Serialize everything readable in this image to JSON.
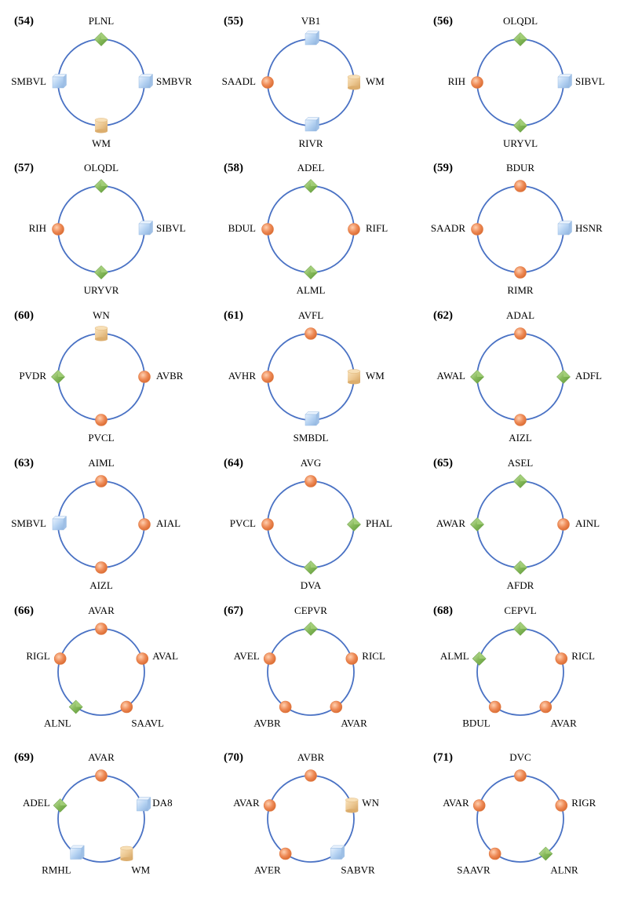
{
  "colors": {
    "ring": "#4a72c4",
    "orange": "#ee8a56",
    "green": "#86b95a",
    "blue": "#b6d3f2",
    "tan": "#ecc892",
    "text": "#000000"
  },
  "motifs": [
    {
      "label": "(54)",
      "nodes": [
        {
          "name": "PLNL",
          "shape": "diamond",
          "color": "green"
        },
        {
          "name": "SMBVR",
          "shape": "cube",
          "color": "blue"
        },
        {
          "name": "WM",
          "shape": "cylinder",
          "color": "tan"
        },
        {
          "name": "SMBVL",
          "shape": "cube",
          "color": "blue"
        }
      ]
    },
    {
      "label": "(55)",
      "nodes": [
        {
          "name": "VB1",
          "shape": "cube",
          "color": "blue"
        },
        {
          "name": "WM",
          "shape": "cylinder",
          "color": "tan"
        },
        {
          "name": "RIVR",
          "shape": "cube",
          "color": "blue"
        },
        {
          "name": "SAADL",
          "shape": "circle",
          "color": "orange"
        }
      ]
    },
    {
      "label": "(56)",
      "nodes": [
        {
          "name": "OLQDL",
          "shape": "diamond",
          "color": "green"
        },
        {
          "name": "SIBVL",
          "shape": "cube",
          "color": "blue"
        },
        {
          "name": "URYVL",
          "shape": "diamond",
          "color": "green"
        },
        {
          "name": "RIH",
          "shape": "circle",
          "color": "orange"
        }
      ]
    },
    {
      "label": "(57)",
      "nodes": [
        {
          "name": "OLQDL",
          "shape": "diamond",
          "color": "green"
        },
        {
          "name": "SIBVL",
          "shape": "cube",
          "color": "blue"
        },
        {
          "name": "URYVR",
          "shape": "diamond",
          "color": "green"
        },
        {
          "name": "RIH",
          "shape": "circle",
          "color": "orange"
        }
      ]
    },
    {
      "label": "(58)",
      "nodes": [
        {
          "name": "ADEL",
          "shape": "diamond",
          "color": "green"
        },
        {
          "name": "RIFL",
          "shape": "circle",
          "color": "orange"
        },
        {
          "name": "ALML",
          "shape": "diamond",
          "color": "green"
        },
        {
          "name": "BDUL",
          "shape": "circle",
          "color": "orange"
        }
      ]
    },
    {
      "label": "(59)",
      "nodes": [
        {
          "name": "BDUR",
          "shape": "circle",
          "color": "orange"
        },
        {
          "name": "HSNR",
          "shape": "cube",
          "color": "blue"
        },
        {
          "name": "RIMR",
          "shape": "circle",
          "color": "orange"
        },
        {
          "name": "SAADR",
          "shape": "circle",
          "color": "orange"
        }
      ]
    },
    {
      "label": "(60)",
      "nodes": [
        {
          "name": "WN",
          "shape": "cylinder",
          "color": "tan"
        },
        {
          "name": "AVBR",
          "shape": "circle",
          "color": "orange"
        },
        {
          "name": "PVCL",
          "shape": "circle",
          "color": "orange"
        },
        {
          "name": "PVDR",
          "shape": "diamond",
          "color": "green"
        }
      ]
    },
    {
      "label": "(61)",
      "nodes": [
        {
          "name": "AVFL",
          "shape": "circle",
          "color": "orange"
        },
        {
          "name": "WM",
          "shape": "cylinder",
          "color": "tan"
        },
        {
          "name": "SMBDL",
          "shape": "cube",
          "color": "blue"
        },
        {
          "name": "AVHR",
          "shape": "circle",
          "color": "orange"
        }
      ]
    },
    {
      "label": "(62)",
      "nodes": [
        {
          "name": "ADAL",
          "shape": "circle",
          "color": "orange"
        },
        {
          "name": "ADFL",
          "shape": "diamond",
          "color": "green"
        },
        {
          "name": "AIZL",
          "shape": "circle",
          "color": "orange"
        },
        {
          "name": "AWAL",
          "shape": "diamond",
          "color": "green"
        }
      ]
    },
    {
      "label": "(63)",
      "nodes": [
        {
          "name": "AIML",
          "shape": "circle",
          "color": "orange"
        },
        {
          "name": "AIAL",
          "shape": "circle",
          "color": "orange"
        },
        {
          "name": "AIZL",
          "shape": "circle",
          "color": "orange"
        },
        {
          "name": "SMBVL",
          "shape": "cube",
          "color": "blue"
        }
      ]
    },
    {
      "label": "(64)",
      "nodes": [
        {
          "name": "AVG",
          "shape": "circle",
          "color": "orange"
        },
        {
          "name": "PHAL",
          "shape": "diamond",
          "color": "green"
        },
        {
          "name": "DVA",
          "shape": "diamond",
          "color": "green"
        },
        {
          "name": "PVCL",
          "shape": "circle",
          "color": "orange"
        }
      ]
    },
    {
      "label": "(65)",
      "nodes": [
        {
          "name": "ASEL",
          "shape": "diamond",
          "color": "green"
        },
        {
          "name": "AINL",
          "shape": "circle",
          "color": "orange"
        },
        {
          "name": "AFDR",
          "shape": "diamond",
          "color": "green"
        },
        {
          "name": "AWAR",
          "shape": "diamond",
          "color": "green"
        }
      ]
    },
    {
      "label": "(66)",
      "nodes": [
        {
          "name": "AVAR",
          "shape": "circle",
          "color": "orange"
        },
        {
          "name": "AVAL",
          "shape": "circle",
          "color": "orange"
        },
        {
          "name": "SAAVL",
          "shape": "circle",
          "color": "orange"
        },
        {
          "name": "ALNL",
          "shape": "diamond",
          "color": "green"
        },
        {
          "name": "RIGL",
          "shape": "circle",
          "color": "orange"
        }
      ]
    },
    {
      "label": "(67)",
      "nodes": [
        {
          "name": "CEPVR",
          "shape": "diamond",
          "color": "green"
        },
        {
          "name": "RICL",
          "shape": "circle",
          "color": "orange"
        },
        {
          "name": "AVAR",
          "shape": "circle",
          "color": "orange"
        },
        {
          "name": "AVBR",
          "shape": "circle",
          "color": "orange"
        },
        {
          "name": "AVEL",
          "shape": "circle",
          "color": "orange"
        }
      ]
    },
    {
      "label": "(68)",
      "nodes": [
        {
          "name": "CEPVL",
          "shape": "diamond",
          "color": "green"
        },
        {
          "name": "RICL",
          "shape": "circle",
          "color": "orange"
        },
        {
          "name": "AVAR",
          "shape": "circle",
          "color": "orange"
        },
        {
          "name": "BDUL",
          "shape": "circle",
          "color": "orange"
        },
        {
          "name": "ALML",
          "shape": "diamond",
          "color": "green"
        }
      ]
    },
    {
      "label": "(69)",
      "nodes": [
        {
          "name": "AVAR",
          "shape": "circle",
          "color": "orange"
        },
        {
          "name": "DA8",
          "shape": "cube",
          "color": "blue"
        },
        {
          "name": "WM",
          "shape": "cylinder",
          "color": "tan"
        },
        {
          "name": "RMHL",
          "shape": "cube",
          "color": "blue"
        },
        {
          "name": "ADEL",
          "shape": "diamond",
          "color": "green"
        }
      ]
    },
    {
      "label": "(70)",
      "nodes": [
        {
          "name": "AVBR",
          "shape": "circle",
          "color": "orange"
        },
        {
          "name": "WN",
          "shape": "cylinder",
          "color": "tan"
        },
        {
          "name": "SABVR",
          "shape": "cube",
          "color": "blue"
        },
        {
          "name": "AVER",
          "shape": "circle",
          "color": "orange"
        },
        {
          "name": "AVAR",
          "shape": "circle",
          "color": "orange"
        }
      ]
    },
    {
      "label": "(71)",
      "nodes": [
        {
          "name": "DVC",
          "shape": "circle",
          "color": "orange"
        },
        {
          "name": "RIGR",
          "shape": "circle",
          "color": "orange"
        },
        {
          "name": "ALNR",
          "shape": "diamond",
          "color": "green"
        },
        {
          "name": "SAAVR",
          "shape": "circle",
          "color": "orange"
        },
        {
          "name": "AVAR",
          "shape": "circle",
          "color": "orange"
        }
      ]
    }
  ]
}
